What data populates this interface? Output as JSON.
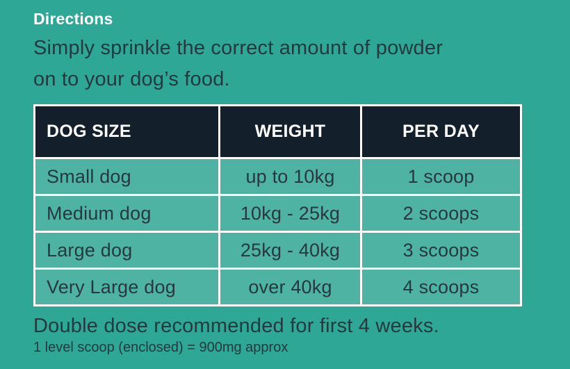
{
  "section": {
    "title": "Directions",
    "description_line1": "Simply sprinkle the correct amount of powder",
    "description_line2": "on to your dog’s food."
  },
  "table": {
    "headers": [
      "DOG SIZE",
      "WEIGHT",
      "PER DAY"
    ],
    "rows": [
      {
        "size": "Small dog",
        "weight": "up to 10kg",
        "per_day": "1 scoop"
      },
      {
        "size": "Medium dog",
        "weight": "10kg - 25kg",
        "per_day": "2 scoops"
      },
      {
        "size": "Large dog",
        "weight": "25kg - 40kg",
        "per_day": "3 scoops"
      },
      {
        "size": "Very Large dog",
        "weight": "over 40kg",
        "per_day": "4 scoops"
      }
    ]
  },
  "footer": {
    "note": "Double dose recommended for first 4 weeks.",
    "subnote": "1 level scoop (enclosed) = 900mg approx"
  },
  "colors": {
    "page_background": "#2fa796",
    "cell_background": "#4fb3a3",
    "header_background": "#131f2b",
    "header_text": "#ffffff",
    "body_text": "#25393f",
    "border": "#ffffff"
  }
}
